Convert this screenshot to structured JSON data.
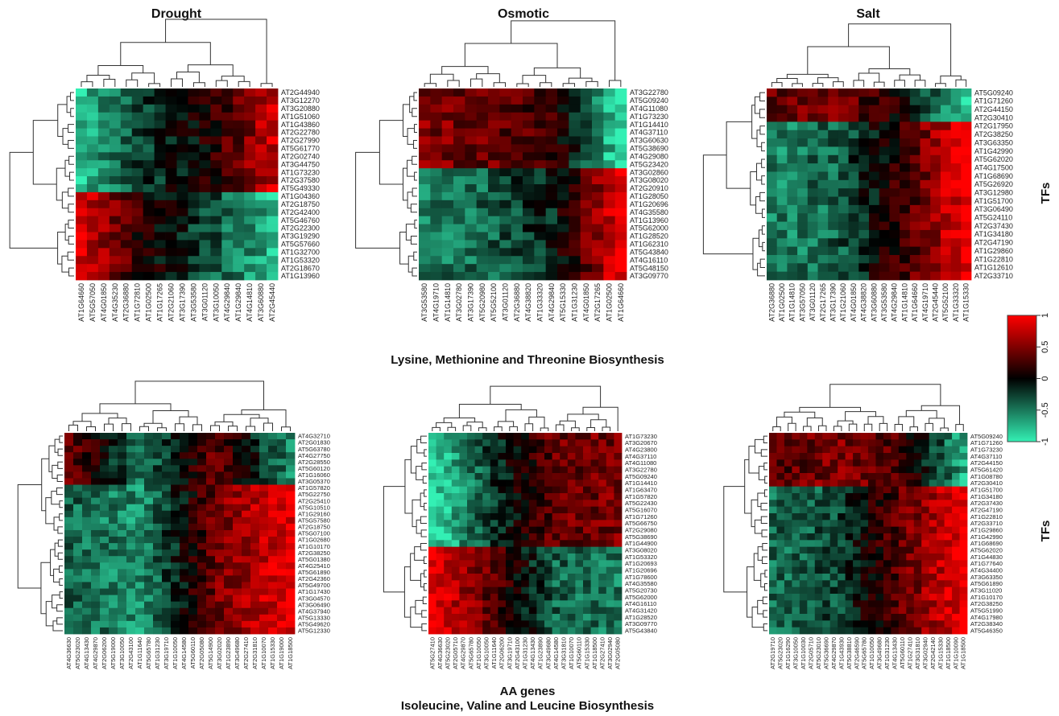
{
  "figure": {
    "section_top": "Lysine, Methionine and Threonine Biosynthesis",
    "section_bottom_line1": "AA genes",
    "section_bottom_line2": "Isoleucine, Valine and Leucine Biosynthesis",
    "side_label": "TFs"
  },
  "colors": {
    "low": "#33f0b4",
    "mid": "#000000",
    "high": "#ff0000"
  },
  "colorbar": {
    "ticks": [
      "-1",
      "-0.5",
      "0",
      "0.5",
      "1"
    ],
    "min": -1,
    "max": 1
  },
  "chart_data": [
    {
      "type": "heatmap",
      "title": "Drought",
      "rows": [
        "AT2G44940",
        "AT3G12270",
        "AT3G20880",
        "AT1G51060",
        "AT1G43860",
        "AT2G22780",
        "AT2G27990",
        "AT5G61770",
        "AT2G02740",
        "AT3G44750",
        "AT1G73230",
        "AT2G37580",
        "AT5G49330",
        "AT1G04360",
        "AT2G18750",
        "AT2G42400",
        "AT5G46760",
        "AT2G22300",
        "AT3G19290",
        "AT5G57660",
        "AT1G32700",
        "AT1G53320",
        "AT2G18670",
        "AT1G13960"
      ],
      "cols": [
        "AT1G64660",
        "AT5G57050",
        "AT4G01850",
        "AT4G35230",
        "AT2G36880",
        "AT1G72810",
        "AT1G02500",
        "AT1G17265",
        "AT2G21060",
        "AT3G17390",
        "AT3G53580",
        "AT3G01120",
        "AT3G10050",
        "AT4G29840",
        "AT1G29840",
        "AT4G14810",
        "AT3G60880",
        "AT2G45440"
      ],
      "row_split": 13,
      "top_block": [
        -0.8,
        -0.25,
        0.1,
        0.75
      ],
      "bottom_block": [
        0.85,
        0.1,
        -0.3,
        -0.75
      ]
    },
    {
      "type": "heatmap",
      "title": "Osmotic",
      "rows": [
        "AT3G22780",
        "AT5G09240",
        "AT4G11080",
        "AT1G73230",
        "AT1G14410",
        "AT4G37110",
        "AT3G60630",
        "AT5G38690",
        "AT4G29080",
        "AT5G23420",
        "AT3G02860",
        "AT3G08020",
        "AT2G20910",
        "AT1G28050",
        "AT1G20696",
        "AT4G35580",
        "AT1G13960",
        "AT5G62000",
        "AT1G28520",
        "AT1G62310",
        "AT5G43840",
        "AT4G16110",
        "AT5G48150",
        "AT3G09770"
      ],
      "cols": [
        "AT3G53580",
        "AT4G19710",
        "AT1G14810",
        "AT3G02780",
        "AT3G17390",
        "AT5G20980",
        "AT5G52100",
        "AT3G01120",
        "AT2G36880",
        "AT4G38820",
        "AT1G33320",
        "AT4G29840",
        "AT5G15330",
        "AT1G31230",
        "AT4G01850",
        "AT2G17265",
        "AT1G02500",
        "AT1G64660"
      ],
      "row_split": 10,
      "top_block": [
        0.5,
        0.4,
        0.2,
        -0.95
      ],
      "bottom_block": [
        -0.5,
        -0.4,
        -0.1,
        0.95
      ]
    },
    {
      "type": "heatmap",
      "title": "Salt",
      "rows": [
        "AT5G09240",
        "AT1G71260",
        "AT2G44150",
        "AT2G30410",
        "AT2G17950",
        "AT2G38250",
        "AT3G63350",
        "AT1G42990",
        "AT5G62020",
        "AT4G17500",
        "AT1G68690",
        "AT5G26920",
        "AT3G12980",
        "AT1G51700",
        "AT3G06490",
        "AT5G24110",
        "AT2G37430",
        "AT1G34180",
        "AT2G47190",
        "AT1G29860",
        "AT1G22810",
        "AT1G12610",
        "AT2G33710"
      ],
      "cols": [
        "AT2G36880",
        "AT1G02500",
        "AT1G14810",
        "AT3G57050",
        "AT3G01120",
        "AT2G17265",
        "AT3G17390",
        "AT1G21060",
        "AT4G01850",
        "AT4G38820",
        "AT3G60880",
        "AT3G53580",
        "AT4G29840",
        "AT1G14810",
        "AT1G64660",
        "AT4G19710",
        "AT2G45440",
        "AT5G52100",
        "AT1G33320",
        "AT1G15330"
      ],
      "row_split": 4,
      "top_block": [
        0.4,
        0.45,
        0.1,
        -0.9
      ],
      "bottom_block": [
        -0.55,
        -0.4,
        0.2,
        0.95
      ]
    },
    {
      "type": "heatmap",
      "title": "",
      "rows": [
        "AT4G32710",
        "AT2G01830",
        "AT5G63780",
        "AT4G27750",
        "AT2G28550",
        "AT5G60120",
        "AT1G16060",
        "AT3G05370",
        "AT1G57820",
        "AT5G22750",
        "AT2G25410",
        "AT5G10510",
        "AT1G29160",
        "AT5G57580",
        "AT2G18750",
        "AT5G07100",
        "AT1G02680",
        "AT1G10170",
        "AT2G38250",
        "AT5G01380",
        "AT4G25410",
        "AT5G61890",
        "AT2G42360",
        "AT5G49700",
        "AT1G17430",
        "AT3G04570",
        "AT3G06490",
        "AT4G37940",
        "AT5G13330",
        "AT5G49620",
        "AT5G12330"
      ],
      "cols": [
        "AT4G36630",
        "AT5G23020",
        "AT4G13430",
        "AT4G29870",
        "AT2G06200",
        "AT5G19000",
        "AT3G10050",
        "AT2G43100",
        "AT1G11640",
        "AT5G65780",
        "AT1G31230",
        "AT3G19710",
        "AT1G10050",
        "AT4G14580",
        "AT5G60110",
        "AT2G05080",
        "AT5G14900",
        "AT3G02020",
        "AT1G23890",
        "AT3G49680",
        "AT2G27410",
        "AT2G31810",
        "AT1G10070",
        "AT1G15330",
        "AT1G19000",
        "AT1G18500"
      ],
      "row_split": 8,
      "top_block": [
        0.4,
        -0.5,
        0.4,
        -0.6
      ],
      "bottom_block": [
        -0.4,
        -0.6,
        0.45,
        0.9
      ]
    },
    {
      "type": "heatmap",
      "title": "",
      "rows": [
        "AT1G73230",
        "AT3G20670",
        "AT4G23800",
        "AT4G37110",
        "AT4G11080",
        "AT3G22780",
        "AT5G09240",
        "AT1G14410",
        "AT1G63470",
        "AT1G57820",
        "AT5G22430",
        "AT5G16070",
        "AT1G71260",
        "AT5G66750",
        "AT2G29080",
        "AT5G38690",
        "AT1G44900",
        "AT3G08020",
        "AT1G53320",
        "AT1G20693",
        "AT1G20696",
        "AT1G78600",
        "AT4G35580",
        "AT5G20730",
        "AT5G62000",
        "AT4G16110",
        "AT4G31420",
        "AT1G28520",
        "AT3G09770",
        "AT5G43840"
      ],
      "cols": [
        "AT5G27410",
        "AT4G36630",
        "AT5G23020",
        "AT2G05710",
        "AT4G29870",
        "AT5G65780",
        "AT1G10050",
        "AT3G10050",
        "AT1G11640",
        "AT2G06200",
        "AT3G19710",
        "AT2G43100",
        "AT1G31230",
        "AT4G13430",
        "AT1G23890",
        "AT3G49680",
        "AT4G14580",
        "AT3G31810",
        "AT1G10070",
        "AT5G60110",
        "AT1G15330",
        "AT1G18500",
        "AT2G27410",
        "AT3G02940",
        "AT2G05080"
      ],
      "row_split": 17,
      "top_block": [
        -0.95,
        -0.2,
        0.4,
        0.45
      ],
      "bottom_block": [
        0.95,
        0.3,
        -0.4,
        -0.5
      ]
    },
    {
      "type": "heatmap",
      "title": "",
      "rows": [
        "AT5G09240",
        "AT1G71260",
        "AT1G73230",
        "AT4G37110",
        "AT2G44150",
        "AT5G61420",
        "AT1G08780",
        "AT2G30410",
        "AT1G51700",
        "AT1G34180",
        "AT2G37430",
        "AT2G47190",
        "AT1G22810",
        "AT2G33710",
        "AT1G29860",
        "AT1G42990",
        "AT1G68690",
        "AT5G62020",
        "AT1G44830",
        "AT1G77640",
        "AT4G34400",
        "AT3G63350",
        "AT5G61890",
        "AT3G11020",
        "AT1G10170",
        "AT2G38250",
        "AT5G51990",
        "AT4G17980",
        "AT2G38340",
        "AT5G46350"
      ],
      "cols": [
        "AT2G19710",
        "AT5G23020",
        "AT1G16290",
        "AT3G10050",
        "AT1G10030",
        "AT2G05710",
        "AT5G23010",
        "AT5G36690",
        "AT4G29870",
        "AT1G43930",
        "AT5G38810",
        "AT2G46590",
        "AT5G65780",
        "AT1G10050",
        "AT3G49680",
        "AT1G31230",
        "AT4G13430",
        "AT5G60110",
        "AT1G27410",
        "AT3G31810",
        "AT3G02940",
        "AT2G42140",
        "AT1G15330",
        "AT1G18500",
        "AT1G10090",
        "AT1G18500"
      ],
      "row_split": 8,
      "top_block": [
        0.3,
        0.5,
        0.3,
        -0.7
      ],
      "bottom_block": [
        -0.45,
        -0.3,
        0.35,
        0.95
      ]
    }
  ]
}
